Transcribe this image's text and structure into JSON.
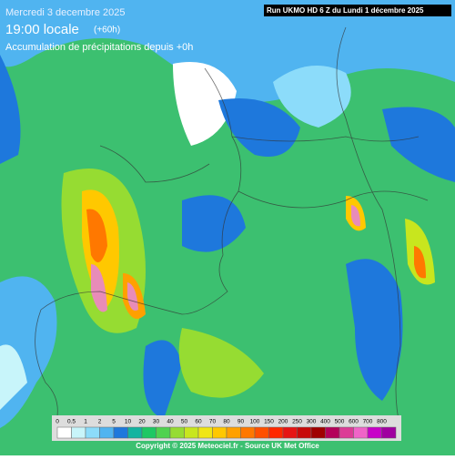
{
  "header": {
    "date": "Mercredi 3 decembre 2025",
    "time": "19:00 locale",
    "lead": "(+60h)",
    "subtitle": "Accumulation de précipitations depuis +0h"
  },
  "run": "Run UKMO HD 6 Z du Lundi 1 décembre 2025",
  "legend": {
    "labels": [
      0,
      0.5,
      1,
      2,
      5,
      10,
      20,
      30,
      40,
      50,
      60,
      70,
      80,
      90,
      100,
      150,
      200,
      250,
      300,
      400,
      500,
      600,
      700,
      800
    ],
    "colors": [
      "#ffffff",
      "#c8f5fa",
      "#8cdcfa",
      "#50b4f0",
      "#1e78dc",
      "#14b4a0",
      "#1ec864",
      "#50d250",
      "#96dc32",
      "#c8e61e",
      "#f0e614",
      "#ffc800",
      "#ffa000",
      "#ff7800",
      "#ff5000",
      "#ff2800",
      "#e61414",
      "#c80a0a",
      "#a00000",
      "#b4005a",
      "#dc3c96",
      "#f064c8",
      "#c800c8",
      "#a000a0"
    ]
  },
  "copyright": "Copyright © 2025 Meteociel.fr - Source UK Met Office"
}
